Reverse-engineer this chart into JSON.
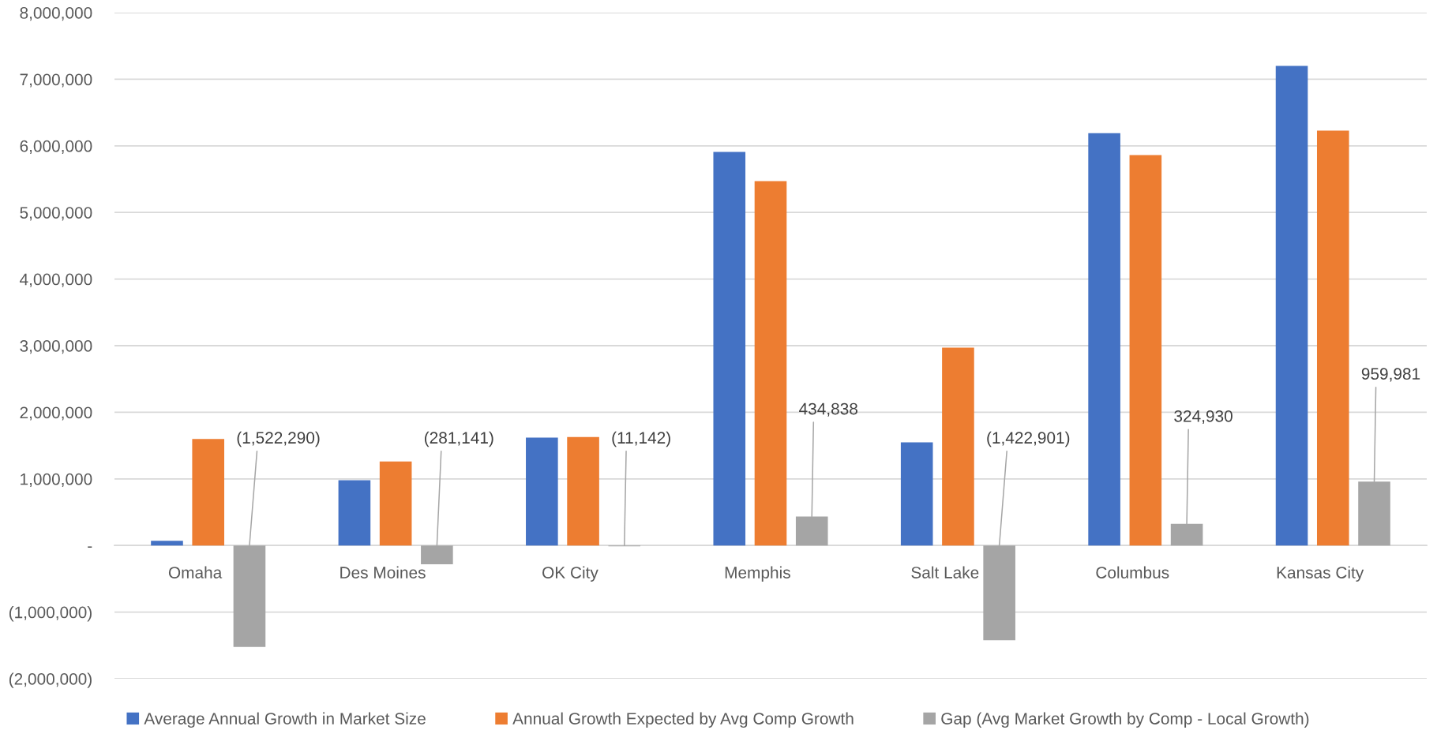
{
  "chart_data": {
    "type": "bar",
    "categories": [
      "Omaha",
      "Des Moines",
      "OK City",
      "Memphis",
      "Salt Lake",
      "Columbus",
      "Kansas City"
    ],
    "series": [
      {
        "name": "Average Annual Growth in Market Size",
        "color": "#4472c4",
        "values": [
          70000,
          980000,
          1620000,
          5910000,
          1550000,
          6190000,
          7200000
        ]
      },
      {
        "name": "Annual Growth Expected by Avg Comp Growth",
        "color": "#ed7d31",
        "values": [
          1600000,
          1260000,
          1630000,
          5470000,
          2970000,
          5860000,
          6230000
        ]
      },
      {
        "name": "Gap (Avg Market Growth by Comp - Local Growth)",
        "color": "#a5a5a5",
        "values": [
          -1522290,
          -281141,
          -11142,
          434838,
          -1422901,
          324930,
          959981
        ],
        "value_labels": [
          "(1,522,290)",
          "(281,141)",
          "(11,142)",
          "434,838",
          "(1,422,901)",
          "324,930",
          "959,981"
        ]
      }
    ],
    "ylim": [
      -2000000,
      8000000
    ],
    "yticks": [
      {
        "value": -2000000,
        "label": "(2,000,000)"
      },
      {
        "value": -1000000,
        "label": "(1,000,000)"
      },
      {
        "value": 0,
        "label": "-"
      },
      {
        "value": 1000000,
        "label": "1,000,000"
      },
      {
        "value": 2000000,
        "label": "2,000,000"
      },
      {
        "value": 3000000,
        "label": "3,000,000"
      },
      {
        "value": 4000000,
        "label": "4,000,000"
      },
      {
        "value": 5000000,
        "label": "5,000,000"
      },
      {
        "value": 6000000,
        "label": "6,000,000"
      },
      {
        "value": 7000000,
        "label": "7,000,000"
      },
      {
        "value": 8000000,
        "label": "8,000,000"
      }
    ],
    "grid": "y",
    "legend": "bottom"
  }
}
